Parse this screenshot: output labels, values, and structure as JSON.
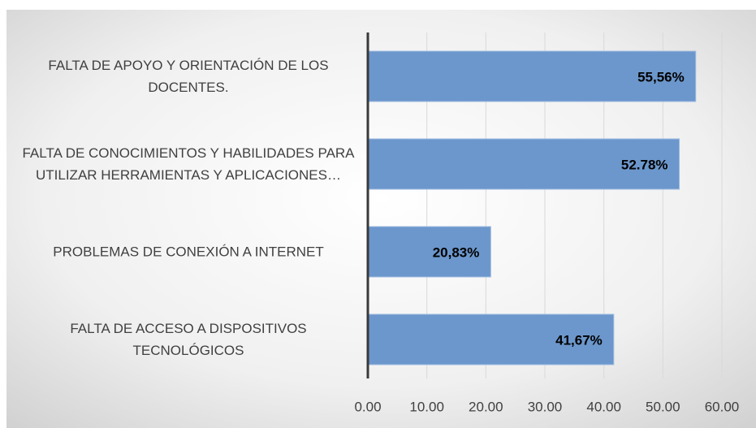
{
  "chart_data": {
    "type": "bar",
    "orientation": "horizontal",
    "categories": [
      "FALTA DE APOYO Y ORIENTACIÓN DE LOS DOCENTES.",
      "FALTA DE CONOCIMIENTOS Y HABILIDADES PARA UTILIZAR HERRAMIENTAS Y APLICACIONES…",
      "PROBLEMAS DE CONEXIÓN A INTERNET",
      "FALTA DE ACCESO A DISPOSITIVOS TECNOLÓGICOS"
    ],
    "values": [
      55.56,
      52.78,
      20.83,
      41.67
    ],
    "value_labels": [
      "55,56%",
      "52.78%",
      "20,83%",
      "41,67%"
    ],
    "color": "#6c97cc",
    "xlim": [
      0,
      60
    ],
    "xticks": [
      {
        "value": 0,
        "label": "0.00"
      },
      {
        "value": 10,
        "label": "10.00"
      },
      {
        "value": 20,
        "label": "20.00"
      },
      {
        "value": 30,
        "label": "30.00"
      },
      {
        "value": 40,
        "label": "40.00"
      },
      {
        "value": 50,
        "label": "50.00"
      },
      {
        "value": 60,
        "label": "60.00"
      }
    ],
    "grid": true
  }
}
